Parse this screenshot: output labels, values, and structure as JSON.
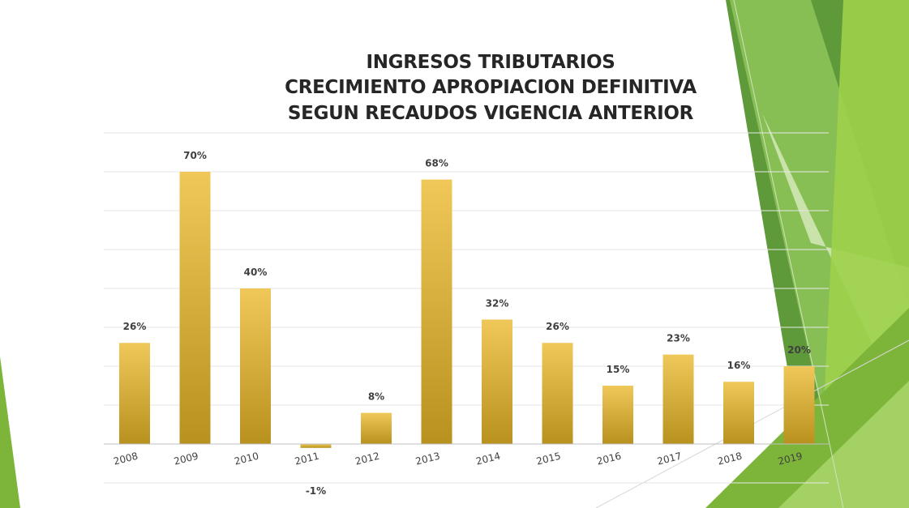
{
  "slide": {
    "title_lines": [
      "INGRESOS TRIBUTARIOS",
      "CRECIMIENTO  APROPIACION DEFINITIVA",
      "SEGUN RECAUDOS VIGENCIA ANTERIOR"
    ]
  },
  "colors": {
    "bar_top": "#f0c85a",
    "bar_bottom": "#b8911e",
    "bar_accent": "#e0b020",
    "gridline": "#e6e6e6",
    "axis": "#bfbfbf",
    "green_dark": "#5e9a3a",
    "green_mid": "#7db53b",
    "green_light": "#a8d468"
  },
  "chart_data": {
    "type": "bar",
    "title": "INGRESOS TRIBUTARIOS CRECIMIENTO  APROPIACION DEFINITIVA SEGUN RECAUDOS VIGENCIA ANTERIOR",
    "categories": [
      "2008",
      "2009",
      "2010",
      "2011",
      "2012",
      "2013",
      "2014",
      "2015",
      "2016",
      "2017",
      "2018",
      "2019"
    ],
    "values": [
      26,
      70,
      40,
      -1,
      8,
      68,
      32,
      26,
      15,
      23,
      16,
      20
    ],
    "data_labels": [
      "26%",
      "70%",
      "40%",
      "-1%",
      "8%",
      "68%",
      "32%",
      "26%",
      "15%",
      "23%",
      "16%",
      "20%"
    ],
    "value_format": "percent",
    "ylim": [
      -10,
      80
    ],
    "y_gridline_step": 10,
    "grid": true,
    "y_axis_labels_shown": false,
    "legend": "none"
  }
}
